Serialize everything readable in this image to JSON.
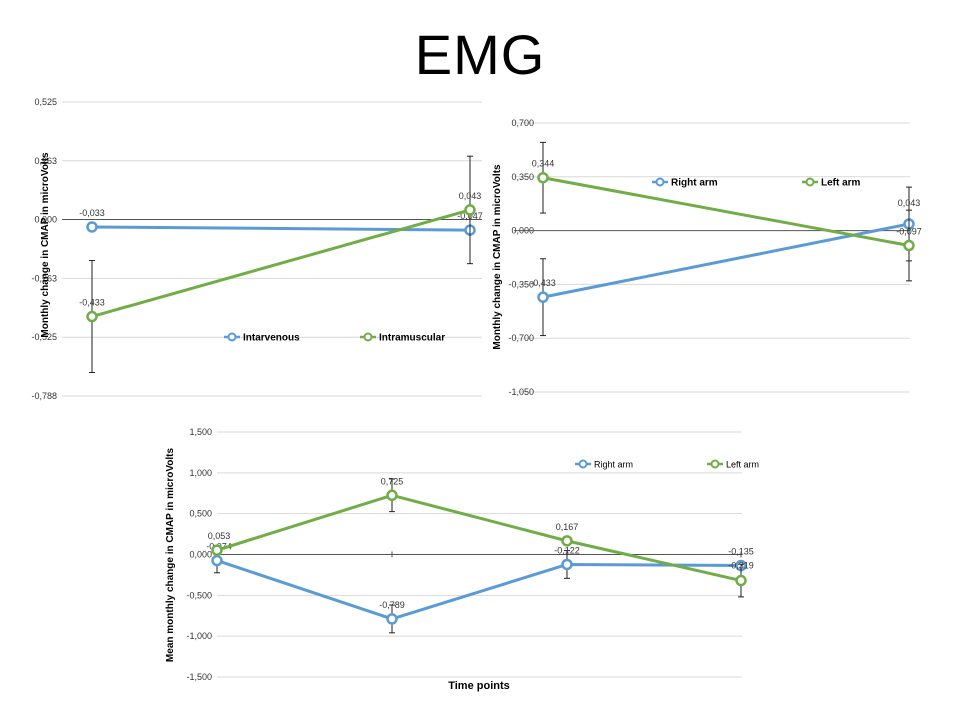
{
  "slide": {
    "title": "EMG"
  },
  "chart_data": [
    {
      "type": "line",
      "ylabel": "Monthly change in CMAP in microVolts",
      "xlabel": "",
      "ylim": [
        -0.788,
        0.525
      ],
      "yticks": [
        "0,525",
        "0,263",
        "0,000",
        "-0,263",
        "-0,525",
        "-0,788"
      ],
      "grid": true,
      "legend_position": "bottom-center",
      "x": [
        1,
        2
      ],
      "series": [
        {
          "name": "Intarvenous",
          "color": "#5B9BD5",
          "values": [
            -0.033,
            -0.047
          ],
          "labels": [
            "-0,033",
            "-0,047"
          ],
          "errors": [
            null,
            null
          ]
        },
        {
          "name": "Intramuscular",
          "color": "#70AD47",
          "values": [
            -0.433,
            0.043
          ],
          "labels": [
            "-0,433",
            "0,043"
          ],
          "errors": [
            0.25,
            0.24
          ]
        }
      ]
    },
    {
      "type": "line",
      "ylabel": "Monthly change in CMAP in microVolts",
      "xlabel": "",
      "ylim": [
        -1.05,
        0.7
      ],
      "yticks": [
        "0,700",
        "0,350",
        "0,000",
        "-0,350",
        "-0,700",
        "-1,050"
      ],
      "grid": true,
      "legend_position": "top-center",
      "x": [
        1,
        2
      ],
      "series": [
        {
          "name": "Right arm",
          "color": "#5B9BD5",
          "values": [
            -0.433,
            0.043
          ],
          "labels": [
            "-0,433",
            "0,043"
          ],
          "errors": [
            0.25,
            0.24
          ]
        },
        {
          "name": "Left arm",
          "color": "#70AD47",
          "values": [
            0.344,
            -0.097
          ],
          "labels": [
            "0,344",
            "-0,097"
          ],
          "errors": [
            0.23,
            0.23
          ]
        }
      ]
    },
    {
      "type": "line",
      "ylabel": "Mean monthly change in CMAP in microVolts",
      "xlabel": "Time points",
      "ylim": [
        -1.5,
        1.5
      ],
      "yticks": [
        "1,500",
        "1,000",
        "0,500",
        "0,000",
        "-0,500",
        "-1,000",
        "-1,500"
      ],
      "grid": true,
      "legend_position": "top-right",
      "x": [
        1,
        2,
        3,
        4
      ],
      "series": [
        {
          "name": "Right arm",
          "color": "#5B9BD5",
          "values": [
            -0.074,
            -0.789,
            -0.122,
            -0.135
          ],
          "labels": [
            "-0,074",
            "-0,789",
            "-0,122",
            "-0,135"
          ],
          "errors": [
            0.15,
            0.17,
            0.17,
            null
          ]
        },
        {
          "name": "Left arm",
          "color": "#70AD47",
          "values": [
            0.053,
            0.725,
            0.167,
            -0.319
          ],
          "labels": [
            "0,053",
            "0,725",
            "0,167",
            "-0,319"
          ],
          "errors": [
            null,
            0.2,
            null,
            0.2
          ]
        }
      ]
    }
  ]
}
